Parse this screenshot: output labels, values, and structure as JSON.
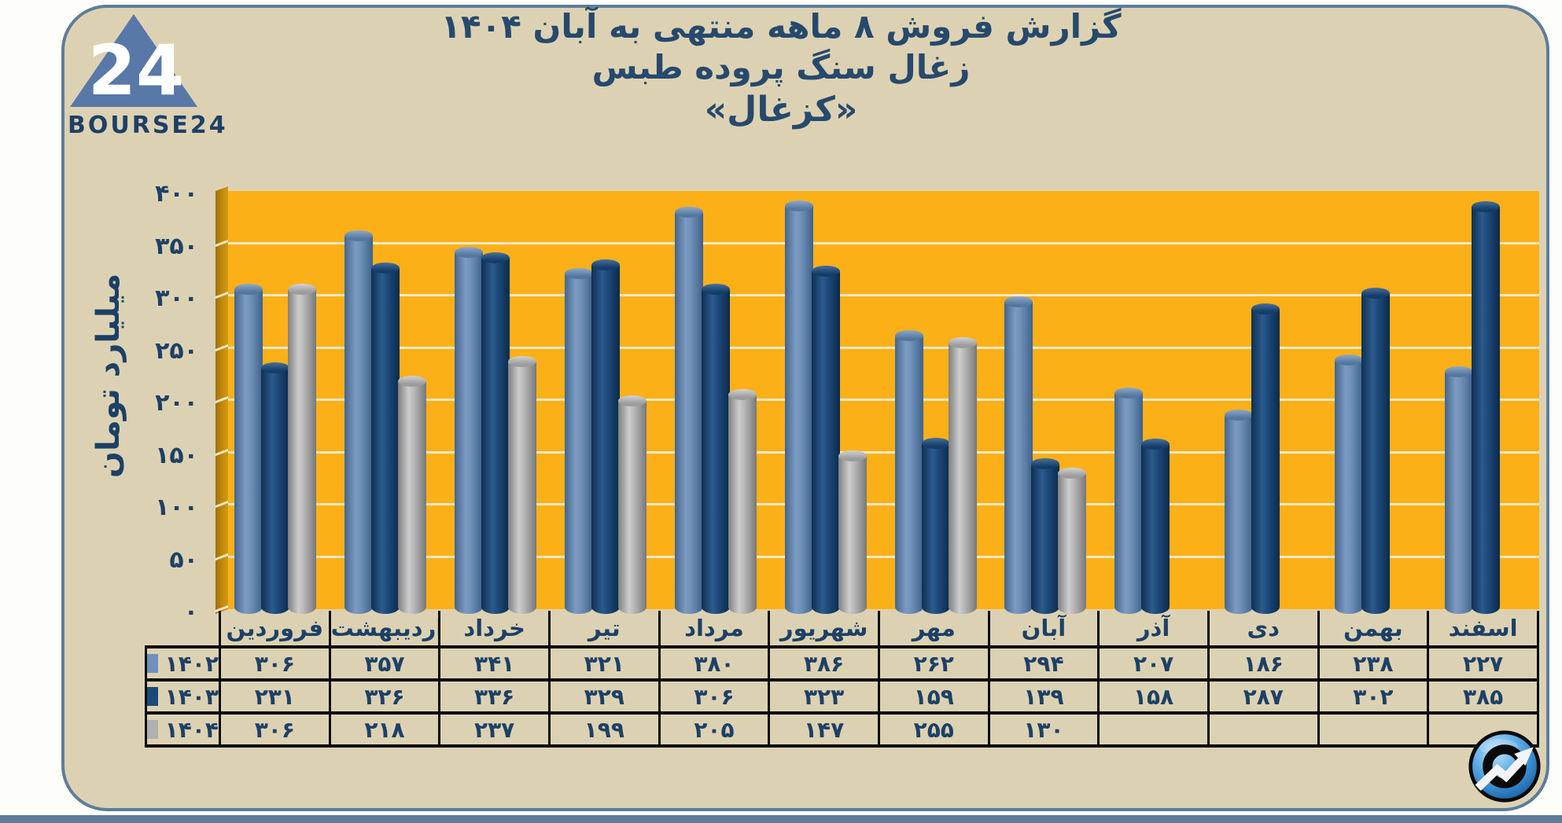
{
  "logo": {
    "mark": "24",
    "brand": "BOURSE24"
  },
  "title": {
    "line1": "گزارش  فروش ۸ ماهه منتهی به آبان ۱۴۰۴",
    "line2": "زغال سنگ پروده طبس",
    "line3": "«کزغال»"
  },
  "digits": "۰۱۲۳۴۵۶۷۸۹",
  "colors": {
    "background_tan": "#dcd2b3",
    "frame_border": "#5d7d9b",
    "plot_orange": "#fbb018",
    "wall_amber": "#bd850d",
    "gridline": "#f4e8c4",
    "text_navy": "#1d4066",
    "title_navy": "#27496d",
    "table_border": "#0b0b0b",
    "series_1402": "#6e90ba",
    "series_1403": "#1c4a78",
    "series_1404": "#b0b0b3",
    "logo_blue": "#5878a8",
    "icon_blue": "#2f8fd6"
  },
  "chart_data": {
    "type": "bar",
    "title": "گزارش فروش ۸ ماهه منتهی به آبان ۱۴۰۴ — زغال سنگ پروده طبس «کزغال»",
    "xlabel": "",
    "ylabel": "میلیارد تومان",
    "ylim": [
      0,
      400
    ],
    "ytick_step": 50,
    "grid": true,
    "legend_position": "left-of-table",
    "categories": [
      "فروردین",
      "اردیبهشت",
      "خرداد",
      "تیر",
      "مرداد",
      "شهریور",
      "مهر",
      "آبان",
      "آذر",
      "دی",
      "بهمن",
      "اسفند"
    ],
    "series": [
      {
        "name": "۱۴۰۲",
        "color_key": "series_1402",
        "values": [
          306,
          357,
          341,
          321,
          380,
          386,
          262,
          294,
          207,
          186,
          238,
          227
        ]
      },
      {
        "name": "۱۴۰۳",
        "color_key": "series_1403",
        "values": [
          231,
          326,
          336,
          329,
          306,
          323,
          159,
          139,
          158,
          287,
          302,
          385
        ]
      },
      {
        "name": "۱۴۰۴",
        "color_key": "series_1404",
        "values": [
          306,
          218,
          237,
          199,
          205,
          147,
          255,
          130,
          null,
          null,
          null,
          null
        ]
      }
    ]
  }
}
